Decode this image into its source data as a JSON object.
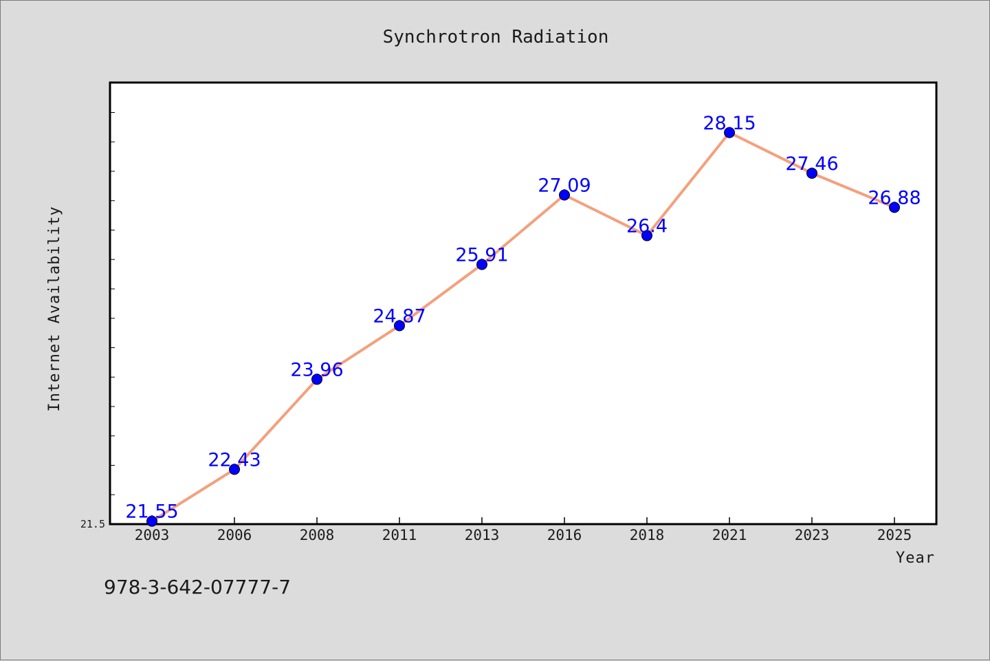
{
  "colors": {
    "background": "#dcdcdc",
    "plot_background": "#ffffff",
    "line": "#f4a07c",
    "marker": "#0000ff",
    "data_label": "#0000ff",
    "axis": "#000000"
  },
  "footer": {
    "isbn": "978-3-642-07777-7"
  },
  "chart_data": {
    "type": "line",
    "title": "Synchrotron Radiation",
    "xlabel": "Year",
    "ylabel": "Internet Availability",
    "categories": [
      "2003",
      "2006",
      "2008",
      "2011",
      "2013",
      "2016",
      "2018",
      "2021",
      "2023",
      "2025"
    ],
    "series": [
      {
        "values": [
          21.55,
          22.43,
          23.96,
          24.87,
          25.91,
          27.09,
          26.4,
          28.15,
          27.46,
          26.88
        ],
        "labels": [
          "21.55",
          "22.43",
          "23.96",
          "24.87",
          "25.91",
          "27.09",
          "26.4",
          "28.15",
          "27.46",
          "26.88"
        ]
      }
    ],
    "ylim": [
      21.5,
      29.0
    ],
    "ytick_labels": [
      "21.5"
    ],
    "grid": false,
    "markers": "circle",
    "data_labels": true
  }
}
